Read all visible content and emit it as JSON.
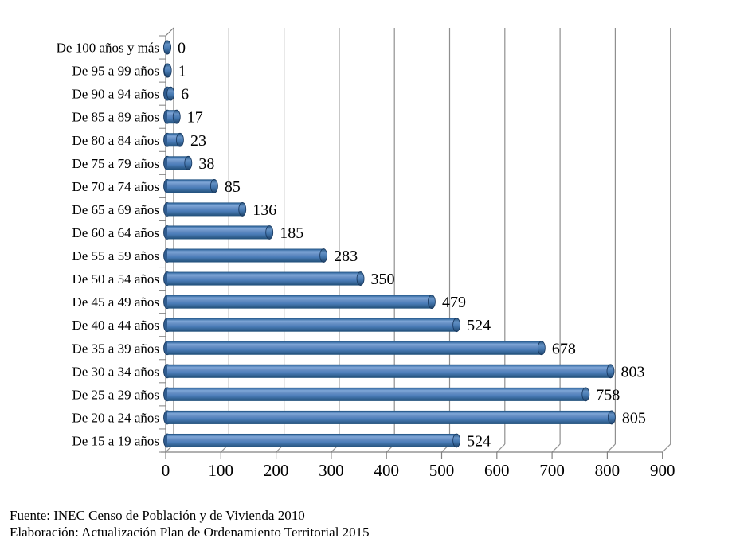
{
  "chart_data": {
    "type": "bar",
    "orientation": "horizontal",
    "style": "3d-cylinder",
    "title": "",
    "xlabel": "",
    "ylabel": "",
    "grid": true,
    "legend_position": "none",
    "bar_color": "#4f81bd",
    "xlim": [
      0,
      900
    ],
    "x_ticks": [
      0,
      100,
      200,
      300,
      400,
      500,
      600,
      700,
      800,
      900
    ],
    "categories": [
      "De 100 años y más",
      "De 95 a 99 años",
      "De 90 a 94 años",
      "De 85 a 89 años",
      "De 80 a 84 años",
      "De 75 a 79 años",
      "De 70 a 74 años",
      "De 65 a 69 años",
      "De 60 a 64 años",
      "De 55 a 59 años",
      "De 50 a 54 años",
      "De 45 a 49 años",
      "De 40 a 44 años",
      "De 35 a 39 años",
      "De 30 a 34 años",
      "De 25 a 29 años",
      "De 20 a 24 años",
      "De 15 a 19 años"
    ],
    "values": [
      0,
      1,
      6,
      17,
      23,
      38,
      85,
      136,
      185,
      283,
      350,
      479,
      524,
      678,
      803,
      758,
      805,
      524
    ]
  },
  "footer": {
    "source": "Fuente: INEC Censo de Población y de Vivienda 2010",
    "elaboration": "Elaboración: Actualización Plan de Ordenamiento Territorial 2015"
  }
}
